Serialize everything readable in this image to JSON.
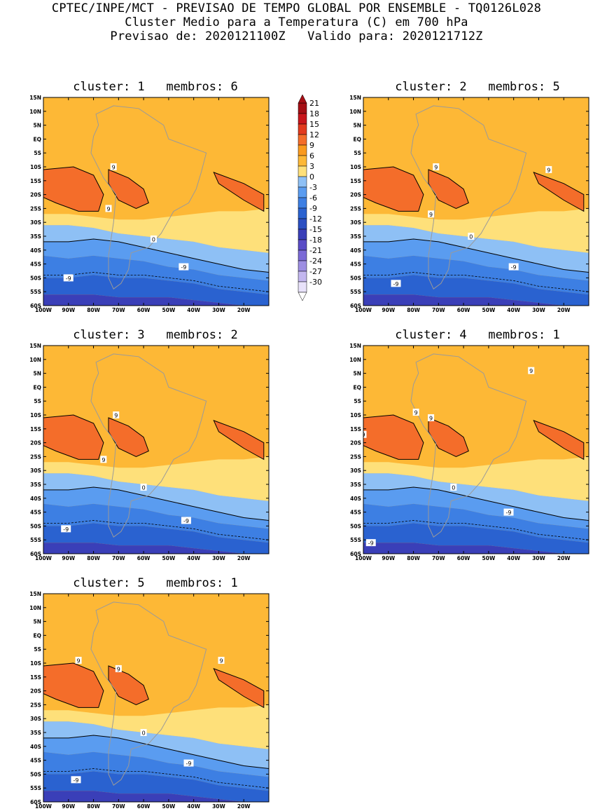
{
  "header": {
    "line1": "CPTEC/INPE/MCT - PREVISAO DE TEMPO GLOBAL POR ENSEMBLE - TQ0126L028",
    "line2": "Cluster Medio para a Temperatura (C) em 700 hPa",
    "line3": "Previsao de: 2020121100Z   Valido para: 2020121712Z"
  },
  "lat_labels": [
    "15N",
    "10N",
    "5N",
    "EQ",
    "5S",
    "10S",
    "15S",
    "20S",
    "25S",
    "30S",
    "35S",
    "40S",
    "45S",
    "50S",
    "55S",
    "60S"
  ],
  "lon_labels": [
    "100W",
    "90W",
    "80W",
    "70W",
    "60W",
    "50W",
    "40W",
    "30W",
    "20W"
  ],
  "colorbar": {
    "labels": [
      "21",
      "18",
      "15",
      "12",
      "9",
      "6",
      "3",
      "0",
      "-3",
      "-6",
      "-9",
      "-12",
      "-15",
      "-18",
      "-21",
      "-24",
      "-27",
      "-30"
    ],
    "colors": [
      "#a50f15",
      "#c8161c",
      "#e23a1e",
      "#f46d2a",
      "#fa9a1e",
      "#fdb836",
      "#fee07a",
      "#8ec0f5",
      "#5a9cf0",
      "#3d7fe3",
      "#2a62d0",
      "#2b4fc2",
      "#3a3fb8",
      "#5a4cc6",
      "#7b6ad6",
      "#9d8ee2",
      "#c3b7ef",
      "#e8e2fa"
    ]
  },
  "clusters": [
    {
      "id": "cluster-1",
      "title": "cluster: 1   membros: 6",
      "labels": [
        {
          "t": "9",
          "lat": -10,
          "lon": -72
        },
        {
          "t": "9",
          "lat": -25,
          "lon": -74
        },
        {
          "t": "0",
          "lat": -36,
          "lon": -56
        },
        {
          "t": "-9",
          "lat": -46,
          "lon": -44
        },
        {
          "t": "-9",
          "lat": -50,
          "lon": -90
        }
      ]
    },
    {
      "id": "cluster-2",
      "title": "cluster: 2   membros: 5",
      "labels": [
        {
          "t": "9",
          "lat": -10,
          "lon": -71
        },
        {
          "t": "9",
          "lat": -11,
          "lon": -26
        },
        {
          "t": "9",
          "lat": -27,
          "lon": -73
        },
        {
          "t": "0",
          "lat": -35,
          "lon": -57
        },
        {
          "t": "-9",
          "lat": -46,
          "lon": -40
        },
        {
          "t": "-9",
          "lat": -52,
          "lon": -87
        }
      ]
    },
    {
      "id": "cluster-3",
      "title": "cluster: 3   membros: 2",
      "labels": [
        {
          "t": "9",
          "lat": -10,
          "lon": -71
        },
        {
          "t": "9",
          "lat": -26,
          "lon": -76
        },
        {
          "t": "0",
          "lat": -36,
          "lon": -60
        },
        {
          "t": "-9",
          "lat": -48,
          "lon": -43
        },
        {
          "t": "-9",
          "lat": -51,
          "lon": -91
        }
      ]
    },
    {
      "id": "cluster-4",
      "title": "cluster: 4   membros: 1",
      "labels": [
        {
          "t": "9",
          "lat": -9,
          "lon": -79
        },
        {
          "t": "9",
          "lat": -11,
          "lon": -73
        },
        {
          "t": "9",
          "lat": -17,
          "lon": -100
        },
        {
          "t": "9",
          "lat": 6,
          "lon": -33
        },
        {
          "t": "0",
          "lat": -36,
          "lon": -64
        },
        {
          "t": "-9",
          "lat": -45,
          "lon": -42
        },
        {
          "t": "-9",
          "lat": -56,
          "lon": -97
        }
      ]
    },
    {
      "id": "cluster-5",
      "title": "cluster: 5   membros: 1",
      "labels": [
        {
          "t": "9",
          "lat": -9,
          "lon": -86
        },
        {
          "t": "9",
          "lat": -12,
          "lon": -70
        },
        {
          "t": "9",
          "lat": -9,
          "lon": -29
        },
        {
          "t": "0",
          "lat": -35,
          "lon": -60
        },
        {
          "t": "-9",
          "lat": -46,
          "lon": -42
        },
        {
          "t": "-9",
          "lat": -52,
          "lon": -87
        }
      ]
    }
  ]
}
